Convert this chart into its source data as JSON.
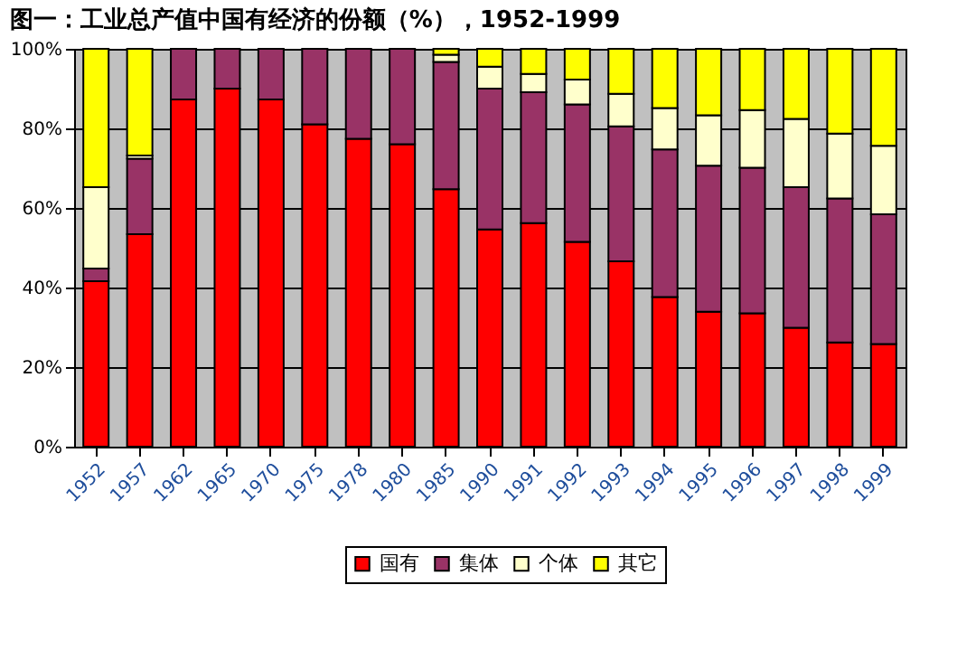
{
  "chart_data": {
    "type": "bar",
    "stacked": true,
    "title": "图一：工业总产值中国有经济的份额（%），1952-1999",
    "categories": [
      "1952",
      "1957",
      "1962",
      "1965",
      "1970",
      "1975",
      "1978",
      "1980",
      "1985",
      "1990",
      "1991",
      "1992",
      "1993",
      "1994",
      "1995",
      "1996",
      "1997",
      "1998",
      "1999"
    ],
    "series": [
      {
        "name": "国有",
        "color": "#ff0000",
        "values": [
          41.6,
          53.4,
          87.3,
          90.0,
          87.3,
          81.0,
          77.4,
          76.0,
          64.7,
          54.6,
          56.2,
          51.5,
          46.6,
          37.6,
          33.9,
          33.5,
          29.9,
          26.2,
          25.8
        ]
      },
      {
        "name": "集体",
        "color": "#993366",
        "values": [
          3.2,
          19.0,
          12.7,
          10.0,
          12.7,
          19.0,
          22.6,
          24.0,
          32.0,
          35.4,
          32.9,
          34.5,
          33.9,
          37.1,
          36.7,
          36.6,
          35.3,
          36.2,
          32.6
        ]
      },
      {
        "name": "个体",
        "color": "#ffffcc",
        "values": [
          20.4,
          0.8,
          null,
          null,
          null,
          null,
          null,
          null,
          1.8,
          5.5,
          4.6,
          6.3,
          8.2,
          10.4,
          12.7,
          14.5,
          17.2,
          16.3,
          17.2
        ]
      },
      {
        "name": "其它",
        "color": "#ffff00",
        "values": [
          34.8,
          26.8,
          null,
          null,
          null,
          null,
          null,
          null,
          1.5,
          4.5,
          6.3,
          7.7,
          11.3,
          14.9,
          16.7,
          15.4,
          17.6,
          21.3,
          24.4
        ]
      }
    ],
    "ylim": [
      0,
      100
    ],
    "yticks": [
      {
        "value": 0,
        "label": "0%"
      },
      {
        "value": 20,
        "label": "20%"
      },
      {
        "value": 40,
        "label": "40%"
      },
      {
        "value": 60,
        "label": "60%"
      },
      {
        "value": 80,
        "label": "80%"
      },
      {
        "value": 100,
        "label": "100%"
      }
    ],
    "grid": "y",
    "legend": "bottom"
  }
}
